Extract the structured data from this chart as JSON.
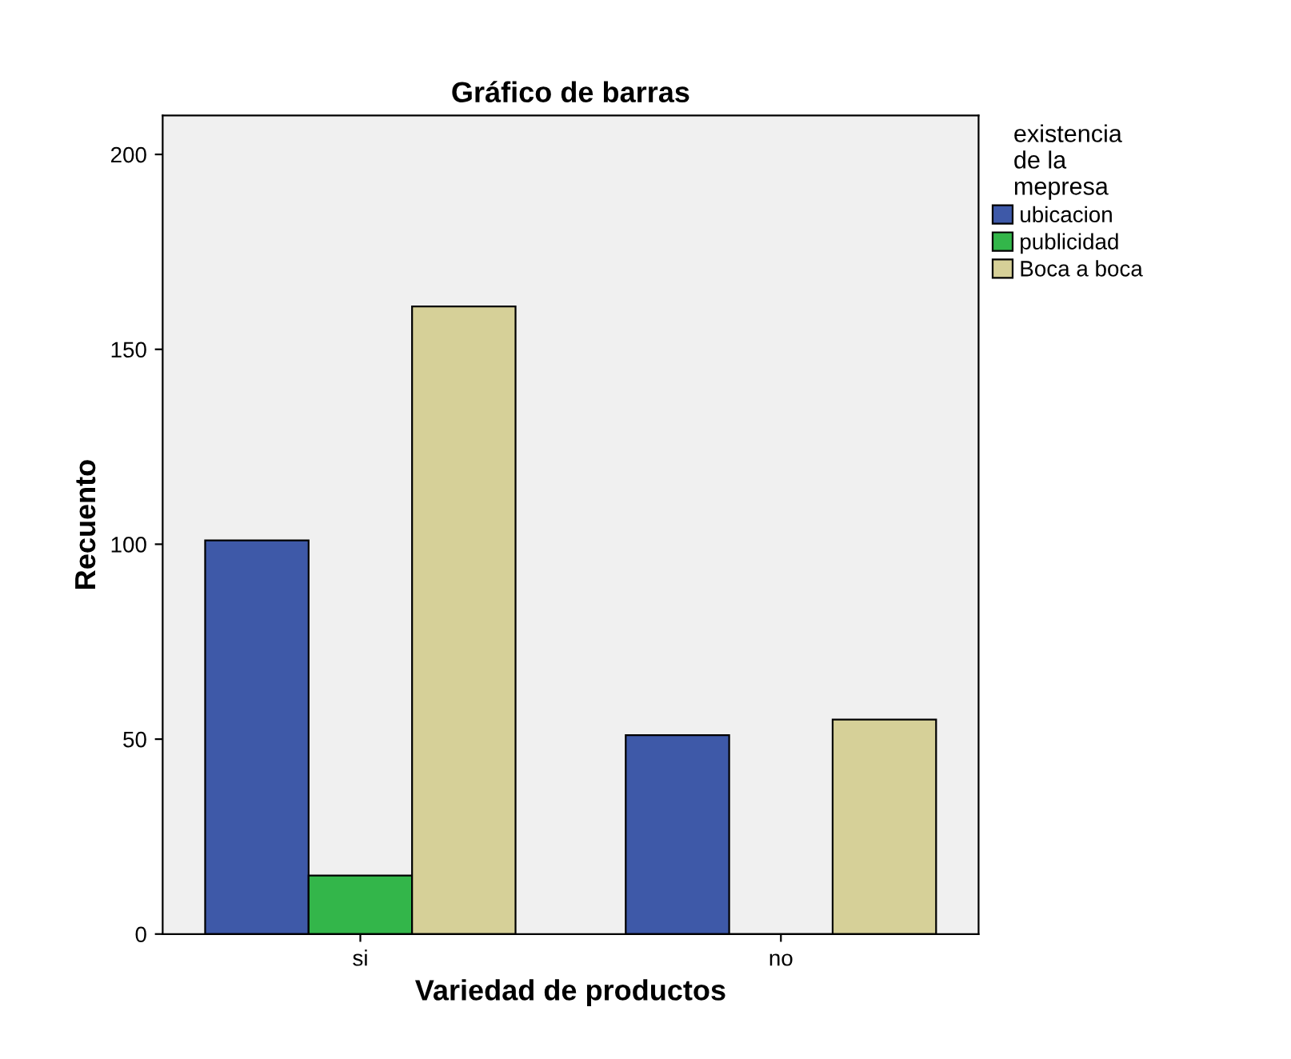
{
  "chart_data": {
    "type": "bar",
    "title": "Gráfico de barras",
    "xlabel": "Variedad de productos",
    "ylabel": "Recuento",
    "legend_title": "existencia\nde la\nmepresa",
    "categories": [
      "si",
      "no"
    ],
    "series": [
      {
        "name": "ubicacion",
        "color": "#3e59a8",
        "values": [
          101,
          51
        ]
      },
      {
        "name": "publicidad",
        "color": "#33b64a",
        "values": [
          15,
          0
        ]
      },
      {
        "name": "Boca a boca",
        "color": "#d6d098",
        "values": [
          161,
          55
        ]
      }
    ],
    "ylim": [
      0,
      210
    ],
    "yticks": [
      0,
      50,
      100,
      150,
      200
    ],
    "grid": false,
    "legend": "right"
  }
}
